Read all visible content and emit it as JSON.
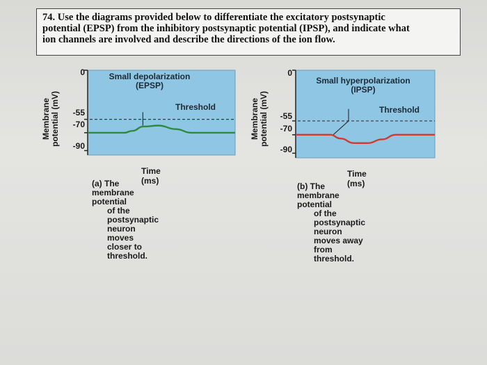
{
  "question": {
    "line1": "74. Use the diagrams provided below to differentiate the excitatory postsynaptic",
    "line2": "potential (EPSP) from the inhibitory postsynaptic potential (IPSP), and indicate what",
    "line3": "ion channels are involved and describe the directions of the ion flow."
  },
  "colors": {
    "plot_bg": "#8fc6e3",
    "epsp_line": "#2e8b3e",
    "ipsp_line": "#d23a2e",
    "threshold_line": "#3a3a3a"
  },
  "chart_data": [
    {
      "type": "line",
      "title_line1": "Small depolarization",
      "title_line2": "(EPSP)",
      "xlabel": "Time (ms)",
      "ylabel_line1": "Membrane",
      "ylabel_line2": "potential (mV)",
      "yticks": [
        "0",
        "-55",
        "-70",
        "-90"
      ],
      "ylim": [
        -95,
        0
      ],
      "threshold": {
        "label": "Threshold",
        "value": -55
      },
      "stimulus_x": 0.28,
      "series": [
        {
          "x": [
            0,
            0.25,
            0.3,
            0.38,
            0.48,
            0.6,
            0.7,
            1.0
          ],
          "values": [
            -70,
            -70,
            -68,
            -63,
            -62,
            -66,
            -70,
            -70
          ]
        }
      ],
      "caption": {
        "line1": "(a) The membrane potential",
        "line2": "of the postsynaptic",
        "line3": "neuron moves closer to",
        "line4": "threshold."
      }
    },
    {
      "type": "line",
      "title_line1": "Small hyperpolarization",
      "title_line2": "(IPSP)",
      "xlabel": "Time (ms)",
      "ylabel_line1": "Membrane",
      "ylabel_line2": "potential (mV)",
      "yticks": [
        "0",
        "-55",
        "-70",
        "-90"
      ],
      "ylim": [
        -95,
        0
      ],
      "threshold": {
        "label": "Threshold",
        "value": -55
      },
      "stimulus_x": 0.3,
      "series": [
        {
          "x": [
            0,
            0.25,
            0.32,
            0.42,
            0.52,
            0.62,
            0.72,
            1.0
          ],
          "values": [
            -70,
            -70,
            -74,
            -79,
            -79,
            -75,
            -70,
            -70
          ]
        }
      ],
      "caption": {
        "line1": "(b) The membrane potential",
        "line2": "of the postsynaptic neuron",
        "line3": "moves away from threshold."
      }
    }
  ]
}
